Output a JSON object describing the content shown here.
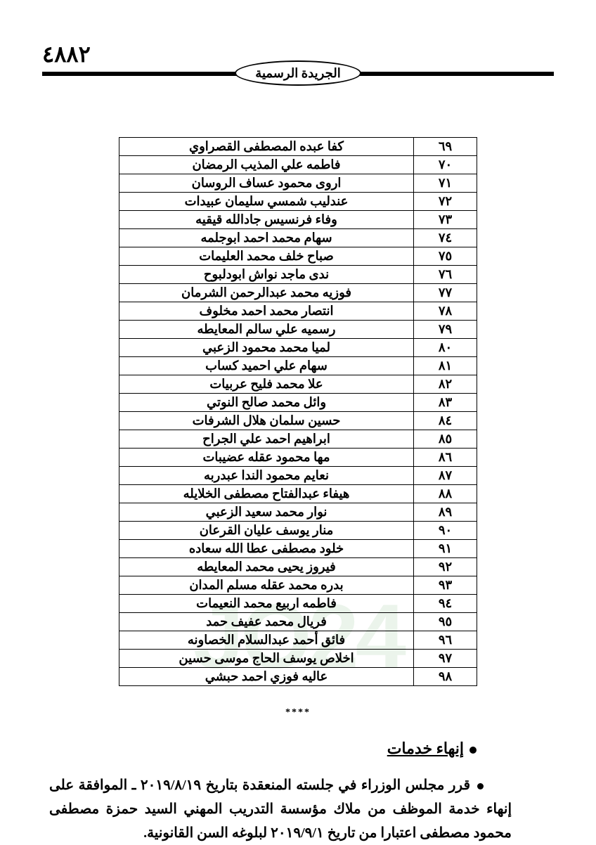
{
  "page_number": "٤٨٨٢",
  "header_title": "الجريدة الرسمية",
  "separator": "****",
  "section_heading": "إنهاء خدمات",
  "decree_text": "قرر مجلس الوزراء في جلسته المنعقدة بتاريخ ٢٠١٩/٨/١٩ ـ الموافقة على إنهاء خدمة الموظف من ملاك مؤسسة التدريب المهني السيد حمزة مصطفى محمود مصطفى اعتبارا من تاريخ ٢٠١٩/٩/١ لبلوغه السن القانونية.",
  "watermark": "JO24",
  "table": {
    "num_col_width": 90,
    "font_size": 18,
    "border_color": "#000000",
    "rows": [
      {
        "n": "٦٩",
        "name": "كفا عبده المصطفى القصراوي"
      },
      {
        "n": "٧٠",
        "name": "فاطمه علي المذيب الرمضان"
      },
      {
        "n": "٧١",
        "name": "اروى محمود عساف الروسان"
      },
      {
        "n": "٧٢",
        "name": "عندليب شمسي سليمان عبيدات"
      },
      {
        "n": "٧٣",
        "name": "وفاء فرنسيس جادالله قيقيه"
      },
      {
        "n": "٧٤",
        "name": "سهام محمد احمد ابوجلمه"
      },
      {
        "n": "٧٥",
        "name": "صباح خلف محمد العليمات"
      },
      {
        "n": "٧٦",
        "name": "ندى ماجد نواش ابودلبوح"
      },
      {
        "n": "٧٧",
        "name": "فوزيه محمد عبدالرحمن الشرمان"
      },
      {
        "n": "٧٨",
        "name": "انتصار محمد احمد مخلوف"
      },
      {
        "n": "٧٩",
        "name": "رسميه علي سالم المعايطه"
      },
      {
        "n": "٨٠",
        "name": "لميا محمد محمود الزعبي"
      },
      {
        "n": "٨١",
        "name": "سهام علي احميد كساب"
      },
      {
        "n": "٨٢",
        "name": "علا محمد فليح عربيات"
      },
      {
        "n": "٨٣",
        "name": "وائل محمد صالح النوتي"
      },
      {
        "n": "٨٤",
        "name": "حسين سلمان هلال الشرفات"
      },
      {
        "n": "٨٥",
        "name": "ابراهيم احمد علي الجراح"
      },
      {
        "n": "٨٦",
        "name": "مها محمود عقله عضيبات"
      },
      {
        "n": "٨٧",
        "name": "نعايم محمود الندا عبدربه"
      },
      {
        "n": "٨٨",
        "name": "هيفاء عبدالفتاح مصطفى الخلايله"
      },
      {
        "n": "٨٩",
        "name": "نوار محمد سعيد الزعبي"
      },
      {
        "n": "٩٠",
        "name": "منار يوسف عليان القرعان"
      },
      {
        "n": "٩١",
        "name": "خلود مصطفى عطا الله سعاده"
      },
      {
        "n": "٩٢",
        "name": "فيروز يحيى محمد المعايطه"
      },
      {
        "n": "٩٣",
        "name": "بدره محمد عقله مسلم المدان"
      },
      {
        "n": "٩٤",
        "name": "فاطمه اربيع محمد النعيمات"
      },
      {
        "n": "٩٥",
        "name": "فريال محمد عفيف حمد"
      },
      {
        "n": "٩٦",
        "name": "فائق أحمد عبدالسلام الخصاونه"
      },
      {
        "n": "٩٧",
        "name": "اخلاص يوسف الحاج موسى حسين"
      },
      {
        "n": "٩٨",
        "name": "عاليه فوزي احمد حبشي"
      }
    ]
  },
  "colors": {
    "text": "#000000",
    "background": "#ffffff",
    "watermark": "rgba(120,180,120,0.15)"
  }
}
